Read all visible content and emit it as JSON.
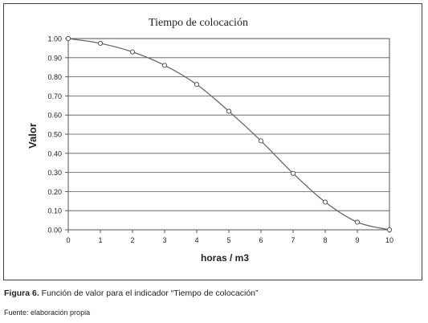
{
  "chart_data": {
    "type": "line",
    "title": "Tiempo de colocación",
    "xlabel": "horas / m3",
    "ylabel": "Valor",
    "x": [
      0,
      1,
      2,
      3,
      4,
      5,
      6,
      7,
      8,
      9,
      10
    ],
    "series": [
      {
        "values": [
          1.0,
          0.975,
          0.93,
          0.86,
          0.76,
          0.62,
          0.465,
          0.295,
          0.145,
          0.04,
          0.0
        ]
      }
    ],
    "xlim": [
      0,
      10
    ],
    "ylim": [
      0,
      1
    ],
    "x_ticks": [
      "0",
      "1",
      "2",
      "3",
      "4",
      "5",
      "6",
      "7",
      "8",
      "9",
      "10"
    ],
    "y_ticks": [
      "0.00",
      "0.10",
      "0.20",
      "0.30",
      "0.40",
      "0.50",
      "0.60",
      "0.70",
      "0.80",
      "0.90",
      "1.00"
    ],
    "grid": "horizontal",
    "line_color": "#666666",
    "marker": "hollow-circle"
  },
  "caption": {
    "label": "Figura 6.",
    "text": " Función de valor para el indicador “Tiempo de colocación”"
  },
  "source": "Fuente: elaboración propia"
}
